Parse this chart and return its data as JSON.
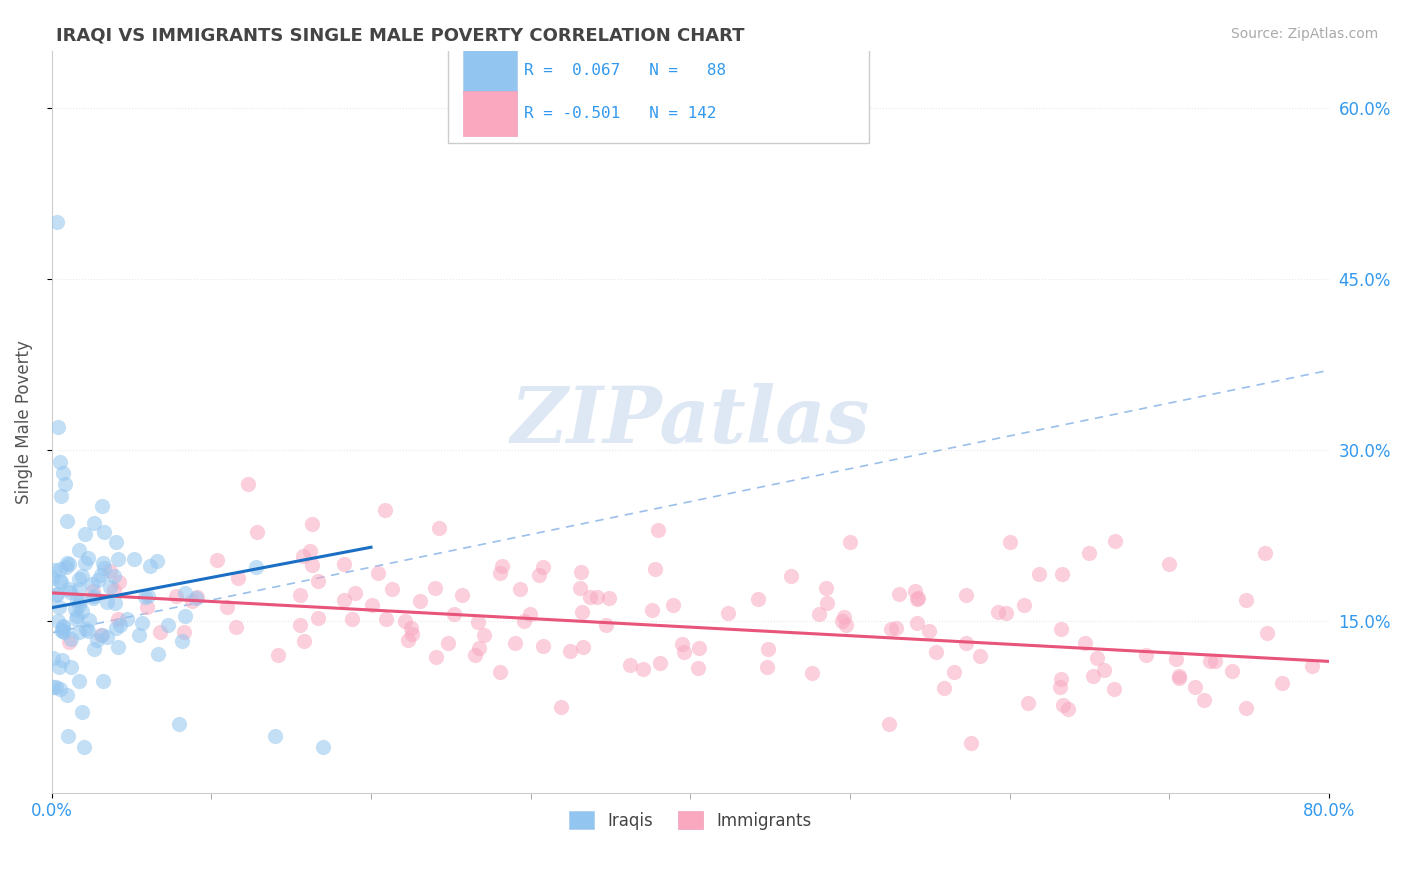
{
  "title": "IRAQI VS IMMIGRANTS SINGLE MALE POVERTY CORRELATION CHART",
  "source": "Source: ZipAtlas.com",
  "ylabel": "Single Male Poverty",
  "right_ytick_vals": [
    0.15,
    0.3,
    0.45,
    0.6
  ],
  "iraqis_color": "#92C5F0",
  "immigrants_color": "#F9A8C0",
  "iraqis_line_color": "#1A6FC4",
  "immigrants_line_color": "#E8547A",
  "dash_line_color": "#8AB4E8",
  "watermark_color": "#D8E8F8",
  "background_color": "#FFFFFF",
  "xlim": [
    0.0,
    0.8
  ],
  "ylim": [
    0.0,
    0.65
  ],
  "grid_color": "#E8E8E8",
  "dot_line_color": "#BBBBBB"
}
